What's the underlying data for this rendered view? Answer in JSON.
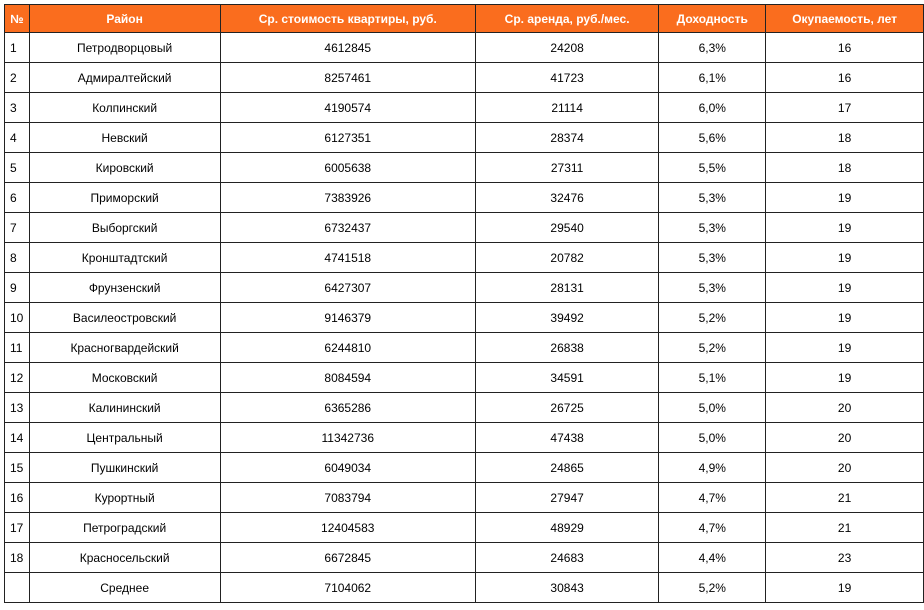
{
  "table": {
    "headers": [
      "№",
      "Район",
      "Ср. стоимость квартиры, руб.",
      "Ср. аренда, руб./мес.",
      "Доходность",
      "Окупаемость, лет"
    ],
    "rows": [
      [
        "1",
        "Петродворцовый",
        "4612845",
        "24208",
        "6,3%",
        "16"
      ],
      [
        "2",
        "Адмиралтейский",
        "8257461",
        "41723",
        "6,1%",
        "16"
      ],
      [
        "3",
        "Колпинский",
        "4190574",
        "21114",
        "6,0%",
        "17"
      ],
      [
        "4",
        "Невский",
        "6127351",
        "28374",
        "5,6%",
        "18"
      ],
      [
        "5",
        "Кировский",
        "6005638",
        "27311",
        "5,5%",
        "18"
      ],
      [
        "6",
        "Приморский",
        "7383926",
        "32476",
        "5,3%",
        "19"
      ],
      [
        "7",
        "Выборгский",
        "6732437",
        "29540",
        "5,3%",
        "19"
      ],
      [
        "8",
        "Кронштадтский",
        "4741518",
        "20782",
        "5,3%",
        "19"
      ],
      [
        "9",
        "Фрунзенский",
        "6427307",
        "28131",
        "5,3%",
        "19"
      ],
      [
        "10",
        "Василеостровский",
        "9146379",
        "39492",
        "5,2%",
        "19"
      ],
      [
        "11",
        "Красногвардейский",
        "6244810",
        "26838",
        "5,2%",
        "19"
      ],
      [
        "12",
        "Московский",
        "8084594",
        "34591",
        "5,1%",
        "19"
      ],
      [
        "13",
        "Калининский",
        "6365286",
        "26725",
        "5,0%",
        "20"
      ],
      [
        "14",
        "Центральный",
        "11342736",
        "47438",
        "5,0%",
        "20"
      ],
      [
        "15",
        "Пушкинский",
        "6049034",
        "24865",
        "4,9%",
        "20"
      ],
      [
        "16",
        "Курортный",
        "7083794",
        "27947",
        "4,7%",
        "21"
      ],
      [
        "17",
        "Петроградский",
        "12404583",
        "48929",
        "4,7%",
        "21"
      ],
      [
        "18",
        "Красносельский",
        "6672845",
        "24683",
        "4,4%",
        "23"
      ],
      [
        "",
        "Среднее",
        "7104062",
        "30843",
        "5,2%",
        "19"
      ]
    ]
  },
  "colors": {
    "header_background": "#fa6d1e",
    "header_text": "#ffffff",
    "border": "#222222"
  }
}
